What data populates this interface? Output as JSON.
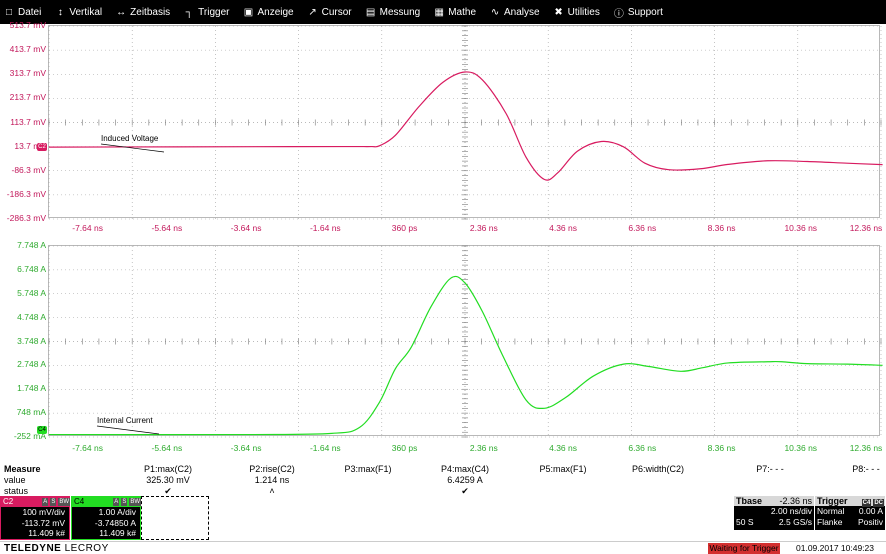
{
  "menu": [
    {
      "label": "Datei",
      "icon": "file-icon",
      "glyph": "□"
    },
    {
      "label": "Vertikal",
      "icon": "vertical-arrows-icon",
      "glyph": "↕"
    },
    {
      "label": "Zeitbasis",
      "icon": "horizontal-arrows-icon",
      "glyph": "↔"
    },
    {
      "label": "Trigger",
      "icon": "trigger-icon",
      "glyph": "┐"
    },
    {
      "label": "Anzeige",
      "icon": "display-icon",
      "glyph": "▣"
    },
    {
      "label": "Cursor",
      "icon": "cursor-icon",
      "glyph": "↗"
    },
    {
      "label": "Messung",
      "icon": "measure-icon",
      "glyph": "▤"
    },
    {
      "label": "Mathe",
      "icon": "math-icon",
      "glyph": "▦"
    },
    {
      "label": "Analyse",
      "icon": "analysis-icon",
      "glyph": "∿"
    },
    {
      "label": "Utilities",
      "icon": "tools-icon",
      "glyph": "✖"
    },
    {
      "label": "Support",
      "icon": "info-icon",
      "glyph": "ⓘ"
    }
  ],
  "colors": {
    "c2": "#d81b60",
    "c4": "#22dd22",
    "grid": "#9e9e9e"
  },
  "chart_data": [
    {
      "type": "line",
      "series": [
        {
          "name": "Induced Voltage",
          "x": [
            -8.14,
            -2.0,
            -0.5,
            0.0,
            0.2,
            0.6,
            1.2,
            1.8,
            2.36,
            2.8,
            3.4,
            3.9,
            4.36,
            4.7,
            5.2,
            5.8,
            6.36,
            6.9,
            7.5,
            8.3,
            9.0,
            10.0,
            11.0,
            12.0,
            12.9
          ],
          "y": [
            11.7,
            13.7,
            14,
            14,
            17,
            60,
            180,
            280,
            323,
            290,
            150,
            -30,
            -122,
            -95,
            -5,
            35,
            13,
            -55,
            -82,
            -78,
            -60,
            -45,
            -48,
            -55,
            -61
          ]
        }
      ],
      "x_ticks": [
        "-7.64 ns",
        "-5.64 ns",
        "-3.64 ns",
        "-1.64 ns",
        "360 ps",
        "2.36 ns",
        "4.36 ns",
        "6.36 ns",
        "8.36 ns",
        "10.36 ns",
        "12.36 ns"
      ],
      "y_ticks": [
        "513.7 mV",
        "413.7 mV",
        "313.7 mV",
        "213.7 mV",
        "113.7 mV",
        "13.7 mV",
        "-86.3 mV",
        "-186.3 mV",
        "-286.3 mV"
      ],
      "xlim": [
        -8.14,
        12.86
      ],
      "ylim": [
        -286.3,
        513.7
      ],
      "grid": true,
      "trace_label": "Induced Voltage",
      "channel": "C2"
    },
    {
      "type": "line",
      "series": [
        {
          "name": "Internal Current",
          "x": [
            -8.14,
            -3.0,
            -1.0,
            -0.3,
            0.2,
            0.6,
            1.0,
            1.5,
            2.0,
            2.36,
            2.8,
            3.3,
            3.9,
            4.36,
            4.9,
            5.6,
            6.36,
            7.0,
            7.8,
            8.36,
            9.0,
            10.0,
            10.36,
            11.0,
            12.0,
            12.9
          ],
          "y": [
            -0.15,
            -0.15,
            -0.1,
            0.15,
            1.2,
            2.6,
            3.5,
            5.2,
            6.4,
            6.2,
            5.0,
            3.2,
            1.3,
            0.95,
            1.4,
            2.3,
            2.8,
            2.7,
            2.5,
            2.65,
            2.85,
            2.9,
            2.9,
            2.82,
            2.8,
            2.75
          ]
        }
      ],
      "x_ticks": [
        "-7.64 ns",
        "-5.64 ns",
        "-3.64 ns",
        "-1.64 ns",
        "360 ps",
        "2.36 ns",
        "4.36 ns",
        "6.36 ns",
        "8.36 ns",
        "10.36 ns",
        "12.36 ns"
      ],
      "y_ticks": [
        "7.748 A",
        "6.748 A",
        "5.748 A",
        "4.748 A",
        "3.748 A",
        "2.748 A",
        "1.748 A",
        "748 mA",
        "-252 mA"
      ],
      "xlim": [
        -8.14,
        12.86
      ],
      "ylim": [
        -0.252,
        7.748
      ],
      "grid": true,
      "trace_label": "Internal Current",
      "channel": "C4"
    }
  ],
  "measure": {
    "header": "Measure",
    "row_labels": [
      "value",
      "status"
    ],
    "params": [
      {
        "name": "P1:max(C2)",
        "value": "325.30 mV",
        "status": "✔"
      },
      {
        "name": "P2:rise(C2)",
        "value": "1.214 ns",
        "status": "˄"
      },
      {
        "name": "P3:max(F1)",
        "value": "",
        "status": ""
      },
      {
        "name": "P4:max(C4)",
        "value": "6.4259 A",
        "status": "✔"
      },
      {
        "name": "P5:max(F1)",
        "value": "",
        "status": ""
      },
      {
        "name": "P6:width(C2)",
        "value": "",
        "status": ""
      },
      {
        "name": "P7:- - -",
        "value": "",
        "status": ""
      },
      {
        "name": "P8:- - -",
        "value": "",
        "status": ""
      }
    ]
  },
  "channels": [
    {
      "name": "C2",
      "buttons": [
        "A",
        "S",
        "BW"
      ],
      "vdiv": "100 mV/div",
      "offset": "-113.72 mV",
      "count": "11.409 k#"
    },
    {
      "name": "C4",
      "buttons": [
        "A",
        "S",
        "BW"
      ],
      "vdiv": "1.00 A/div",
      "offset": "-3.74850 A",
      "count": "11.409 k#"
    }
  ],
  "timebase": {
    "title": "Tbase",
    "delay": "-2.36 ns",
    "tdiv": "2.00 ns/div",
    "samples": "50 S",
    "rate": "2.5 GS/s"
  },
  "trigger": {
    "title": "Trigger",
    "channel": "C4",
    "coupling": "DC",
    "mode": "Normal",
    "level": "0.00 A",
    "type": "Flanke",
    "slope": "Positiv"
  },
  "footer": {
    "brand_bold": "TELEDYNE",
    "brand_rest": " LECROY",
    "status": "Waiting for Trigger",
    "datetime": "01.09.2017 10:49:23"
  }
}
